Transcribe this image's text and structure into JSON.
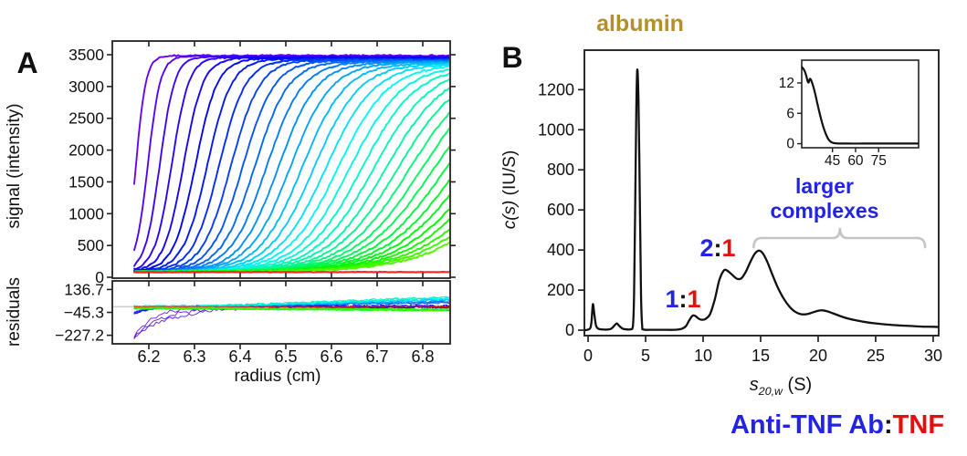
{
  "figure": {
    "bg": "#ffffff"
  },
  "colors": {
    "text": "#111111",
    "gold": "#b3902c",
    "blue": "#2323e6",
    "red": "#e60d0d",
    "curve": "#111111",
    "axis": "#222222",
    "brace": "#c4c4c4",
    "zero_line": "#d0d0d0",
    "red_scan": "#ff1a1a"
  },
  "panelA": {
    "letter": "A",
    "ylabel": "signal (intensity)",
    "residuals_label": "residuals",
    "xlabel": "radius (cm)"
  },
  "panelB": {
    "letter": "B",
    "title": "albumin",
    "ylabel": {
      "italic": "c(s)",
      "rest": " (IU/S)"
    },
    "xlabel": {
      "s": "s",
      "sub": "20,w",
      "rest": " (S)"
    },
    "annotations": {
      "ratio11": {
        "a": "1",
        "colon": ":",
        "b": "1"
      },
      "ratio21": {
        "a": "2",
        "colon": ":",
        "b": "1"
      },
      "larger_line1": "larger",
      "larger_line2": "complexes",
      "bottom": {
        "blue": "Anti-TNF Ab",
        "colon": ":",
        "red": "TNF"
      }
    }
  },
  "chart_data": [
    {
      "id": "panelA_sedimentation",
      "type": "line",
      "xlabel": "radius (cm)",
      "ylabel": "signal (intensity)",
      "xlim": [
        6.12,
        6.86
      ],
      "x_ticks": [
        6.2,
        6.3,
        6.4,
        6.5,
        6.6,
        6.7,
        6.8
      ],
      "x_tick_labels": [
        "6.2",
        "6.3",
        "6.4",
        "6.5",
        "6.6",
        "6.7",
        "6.8"
      ],
      "ylim": [
        -14,
        3715
      ],
      "y_ticks": [
        0,
        500,
        1000,
        1500,
        2000,
        2500,
        3000,
        3500
      ],
      "note": "sedimentation velocity scans (noisy data + smooth fits), colored violet (early) to green (late), final flat baseline scan red",
      "scans": {
        "count": 35,
        "x_start": 6.168,
        "x_end": 6.858,
        "c_start": 6.172,
        "c_step": 0.026,
        "w_start": 0.011,
        "w_step": 0.0026,
        "plateau_start": 3400,
        "plateau_step": 8,
        "baseline": 85,
        "red_level": 82,
        "noise": 14,
        "hue_start": 265,
        "hue_end": 100
      },
      "residuals": {
        "ylim": [
          -295,
          205
        ],
        "y_ticks": [
          136.7,
          -45.3,
          -227.2
        ],
        "y_tick_labels": [
          "136.7",
          "−45.3",
          "−227.2"
        ],
        "zero_line": true,
        "note": "noise band ±30, early violet scans dip to −230 near meniscus, late blue scans drift up to +90 at base"
      }
    },
    {
      "id": "panelB_cs_distribution",
      "type": "line",
      "xlabel": "s20,w (S)",
      "ylabel": "c(s) (IU/S)",
      "xlim": [
        -0.32,
        30.48
      ],
      "x_ticks": [
        0,
        5,
        10,
        15,
        20,
        25,
        30
      ],
      "ylim": [
        -27,
        1397
      ],
      "y_ticks": [
        0,
        200,
        400,
        600,
        800,
        1000,
        1200
      ],
      "points": [
        [
          -0.3,
          0
        ],
        [
          0,
          3
        ],
        [
          0.2,
          12
        ],
        [
          0.3,
          45
        ],
        [
          0.42,
          130
        ],
        [
          0.55,
          75
        ],
        [
          0.7,
          22
        ],
        [
          0.9,
          7
        ],
        [
          1.2,
          4
        ],
        [
          1.6,
          3
        ],
        [
          2.0,
          7
        ],
        [
          2.3,
          24
        ],
        [
          2.5,
          34
        ],
        [
          2.7,
          22
        ],
        [
          3.0,
          8
        ],
        [
          3.4,
          4
        ],
        [
          3.7,
          5
        ],
        [
          3.9,
          25
        ],
        [
          4.0,
          180
        ],
        [
          4.1,
          650
        ],
        [
          4.2,
          1120
        ],
        [
          4.28,
          1300
        ],
        [
          4.38,
          1150
        ],
        [
          4.5,
          650
        ],
        [
          4.6,
          180
        ],
        [
          4.7,
          25
        ],
        [
          4.8,
          4
        ],
        [
          5.5,
          2
        ],
        [
          6.5,
          2
        ],
        [
          7.5,
          2
        ],
        [
          8.1,
          6
        ],
        [
          8.5,
          20
        ],
        [
          8.8,
          50
        ],
        [
          9.1,
          73
        ],
        [
          9.35,
          70
        ],
        [
          9.6,
          58
        ],
        [
          9.9,
          52
        ],
        [
          10.2,
          56
        ],
        [
          10.6,
          80
        ],
        [
          11.0,
          150
        ],
        [
          11.4,
          248
        ],
        [
          11.8,
          298
        ],
        [
          12.1,
          297
        ],
        [
          12.5,
          278
        ],
        [
          12.9,
          258
        ],
        [
          13.3,
          258
        ],
        [
          13.7,
          290
        ],
        [
          14.1,
          340
        ],
        [
          14.5,
          382
        ],
        [
          14.85,
          397
        ],
        [
          15.2,
          383
        ],
        [
          15.6,
          338
        ],
        [
          16.0,
          280
        ],
        [
          16.5,
          212
        ],
        [
          17.0,
          158
        ],
        [
          17.5,
          118
        ],
        [
          18.0,
          92
        ],
        [
          18.5,
          80
        ],
        [
          19.0,
          80
        ],
        [
          19.5,
          88
        ],
        [
          20.0,
          97
        ],
        [
          20.4,
          99
        ],
        [
          20.8,
          94
        ],
        [
          21.3,
          84
        ],
        [
          21.9,
          71
        ],
        [
          22.6,
          58
        ],
        [
          23.4,
          48
        ],
        [
          24.2,
          40
        ],
        [
          25.0,
          34
        ],
        [
          26.0,
          28
        ],
        [
          27.0,
          24
        ],
        [
          28.0,
          21
        ],
        [
          29.0,
          18
        ],
        [
          30.0,
          17
        ],
        [
          30.48,
          16
        ]
      ],
      "peaks": {
        "albumin_s": 4.3,
        "ratio_1_1_s": 9.1,
        "ratio_2_1_s": 11.8,
        "main_complex_s": 14.85
      },
      "brace": {
        "x1": 14.4,
        "x2": 29.3,
        "notch_x": 21.9,
        "y": 460
      }
    },
    {
      "id": "panelB_inset",
      "type": "line",
      "xlim": [
        25,
        101
      ],
      "x_ticks": [
        45,
        60,
        75
      ],
      "ylim": [
        -0.8,
        16.5
      ],
      "y_ticks": [
        0,
        6,
        12
      ],
      "points": [
        [
          25,
          15.2
        ],
        [
          26.5,
          14.6
        ],
        [
          27.8,
          13.6
        ],
        [
          28.8,
          12.4
        ],
        [
          29.5,
          12.1
        ],
        [
          30.2,
          12.8
        ],
        [
          31.0,
          12.6
        ],
        [
          32.0,
          11.8
        ],
        [
          33.5,
          10.2
        ],
        [
          35.0,
          8.2
        ],
        [
          36.5,
          6.2
        ],
        [
          38.0,
          4.4
        ],
        [
          39.5,
          2.9
        ],
        [
          41.0,
          1.7
        ],
        [
          42.5,
          0.8
        ],
        [
          44.0,
          0.35
        ],
        [
          45.5,
          0.15
        ],
        [
          47.5,
          0.06
        ],
        [
          50,
          0.03
        ],
        [
          55,
          0.02
        ],
        [
          65,
          0.02
        ],
        [
          75,
          0.02
        ],
        [
          85,
          0.02
        ],
        [
          101,
          0.02
        ]
      ]
    }
  ]
}
